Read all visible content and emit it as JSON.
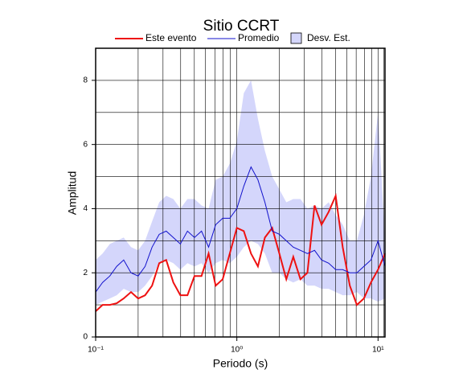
{
  "chart_data": {
    "type": "line",
    "title": "Sitio CCRT",
    "xlabel": "Periodo (s)",
    "ylabel": "Amplitud",
    "xscale": "log",
    "xlim": [
      0.1,
      11.2
    ],
    "ylim": [
      0,
      9
    ],
    "xticks": [
      {
        "value": 0.1,
        "label": "10⁻¹"
      },
      {
        "value": 1,
        "label": "10⁰"
      },
      {
        "value": 10,
        "label": "10¹"
      }
    ],
    "yticks": [
      0,
      2,
      4,
      6,
      8
    ],
    "xgrid": [
      0.2,
      0.3,
      0.4,
      0.5,
      0.6,
      0.7,
      0.8,
      0.9,
      1,
      2,
      3,
      4,
      5,
      6,
      7,
      8,
      9,
      10,
      11
    ],
    "ygrid": [
      1,
      2,
      3,
      4,
      5,
      6,
      7,
      8
    ],
    "x": [
      0.1,
      0.112,
      0.126,
      0.141,
      0.158,
      0.178,
      0.2,
      0.224,
      0.251,
      0.282,
      0.316,
      0.355,
      0.398,
      0.447,
      0.501,
      0.562,
      0.631,
      0.708,
      0.794,
      0.891,
      1,
      1.12,
      1.26,
      1.41,
      1.58,
      1.78,
      2,
      2.24,
      2.51,
      2.82,
      3.16,
      3.55,
      3.98,
      4.47,
      5.01,
      5.62,
      6.31,
      7.08,
      7.94,
      8.91,
      10,
      11.2
    ],
    "series": [
      {
        "name": "Este evento",
        "color": "#ee1111",
        "width": 2,
        "values": [
          0.8,
          1.0,
          1.0,
          1.05,
          1.2,
          1.4,
          1.2,
          1.3,
          1.6,
          2.3,
          2.4,
          1.7,
          1.3,
          1.3,
          1.9,
          1.9,
          2.6,
          1.6,
          1.8,
          2.6,
          3.4,
          3.3,
          2.6,
          2.2,
          3.1,
          3.4,
          2.6,
          1.8,
          2.5,
          1.8,
          2.0,
          4.1,
          3.5,
          3.9,
          4.4,
          2.8,
          1.6,
          1.0,
          1.2,
          1.7,
          2.1,
          2.6
        ]
      },
      {
        "name": "Promedio",
        "color": "#1111cc",
        "width": 1,
        "values": [
          1.4,
          1.7,
          1.9,
          2.2,
          2.4,
          2.0,
          1.9,
          2.2,
          2.8,
          3.2,
          3.3,
          3.1,
          2.9,
          3.3,
          3.1,
          3.3,
          2.8,
          3.5,
          3.7,
          3.7,
          4.0,
          4.7,
          5.3,
          4.9,
          4.2,
          3.3,
          3.2,
          3.0,
          2.8,
          2.7,
          2.6,
          2.7,
          2.4,
          2.3,
          2.1,
          2.1,
          2.0,
          2.0,
          2.2,
          2.4,
          3.0,
          2.2
        ]
      },
      {
        "name": "Desv. Est.",
        "color": "#d4d6fb",
        "upper": [
          2.4,
          2.6,
          2.9,
          3.0,
          3.1,
          2.8,
          2.7,
          3.0,
          3.6,
          4.2,
          4.4,
          4.3,
          4.0,
          4.3,
          4.3,
          4.1,
          4.0,
          4.9,
          5.0,
          5.4,
          6.1,
          7.6,
          8.0,
          6.8,
          5.8,
          5.0,
          4.6,
          4.2,
          4.3,
          4.3,
          4.0,
          4.1,
          4.0,
          4.2,
          3.8,
          3.5,
          3.0,
          3.0,
          3.8,
          5.0,
          7.0,
          3.0
        ],
        "lower": [
          1.0,
          1.1,
          1.2,
          1.3,
          1.5,
          1.4,
          1.4,
          1.6,
          1.9,
          2.3,
          2.4,
          2.3,
          2.1,
          2.3,
          2.2,
          2.3,
          2.0,
          2.3,
          2.4,
          2.3,
          2.5,
          2.8,
          3.0,
          2.9,
          2.6,
          2.0,
          2.0,
          1.8,
          1.7,
          1.8,
          1.6,
          1.6,
          1.5,
          1.5,
          1.4,
          1.3,
          1.3,
          1.4,
          1.2,
          1.2,
          1.1,
          1.2
        ]
      }
    ]
  }
}
